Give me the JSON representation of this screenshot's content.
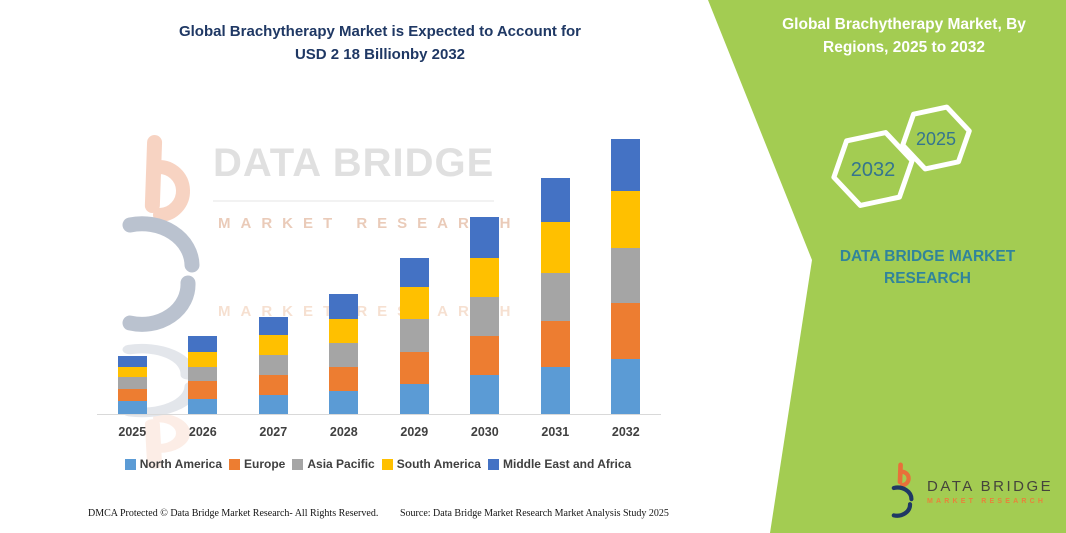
{
  "left": {
    "title_line1": "Global Brachytherapy Market is Expected to Account for",
    "title_line2": "USD 2 18 Billionby 2032",
    "footer_left": "DMCA Protected © Data Bridge Market Research- All Rights Reserved.",
    "footer_right": "Source: Data Bridge Market Research Market Analysis Study 2025",
    "watermark": {
      "brand": "DATA BRIDGE",
      "sub": "MARKET RESEARCH"
    }
  },
  "chart_data": {
    "type": "bar",
    "stacked": true,
    "title": "Global Brachytherapy Market, By Regions, 2025 to 2032",
    "units": "USD Billion",
    "categories": [
      "2025",
      "2026",
      "2027",
      "2028",
      "2029",
      "2030",
      "2031",
      "2032"
    ],
    "series": [
      {
        "name": "North America",
        "color": "#5B9BD5",
        "values": [
          0.1,
          0.12,
          0.15,
          0.18,
          0.24,
          0.31,
          0.37,
          0.44
        ]
      },
      {
        "name": "Europe",
        "color": "#ED7D31",
        "values": [
          0.1,
          0.14,
          0.16,
          0.19,
          0.25,
          0.31,
          0.37,
          0.44
        ]
      },
      {
        "name": "Asia Pacific",
        "color": "#A5A5A5",
        "values": [
          0.09,
          0.11,
          0.16,
          0.19,
          0.26,
          0.31,
          0.38,
          0.44
        ]
      },
      {
        "name": "South America",
        "color": "#FFC000",
        "values": [
          0.08,
          0.12,
          0.16,
          0.19,
          0.26,
          0.31,
          0.4,
          0.45
        ]
      },
      {
        "name": "Middle East and Africa",
        "color": "#4472C4",
        "values": [
          0.09,
          0.13,
          0.14,
          0.2,
          0.23,
          0.32,
          0.35,
          0.41
        ]
      }
    ],
    "totals": [
      0.46,
      0.62,
      0.77,
      0.95,
      1.24,
      1.56,
      1.87,
      2.18
    ],
    "xlabel": "",
    "ylabel": "",
    "ylim": [
      0,
      2.3
    ],
    "grid": false,
    "legend_position": "bottom",
    "axis_color": "#d9d9d9",
    "tick_color": "#404040"
  },
  "side_panel": {
    "heading_line1": "Global Brachytherapy Market, By",
    "heading_line2": "Regions, 2025 to 2032",
    "badges": [
      {
        "label": "2032"
      },
      {
        "label": "2025"
      }
    ],
    "brand_line1": "DATA BRIDGE MARKET",
    "brand_line2": "RESEARCH"
  },
  "logo": {
    "name": "DATA BRIDGE",
    "sub": "MARKET RESEARCH"
  },
  "colors": {
    "panel_green": "#a3cc52",
    "title_navy": "#1f3864",
    "brand_teal": "#31849b",
    "hex_badge_text": "#35758e",
    "logo_orange": "#e8703a",
    "logo_navy": "#1f3864"
  }
}
